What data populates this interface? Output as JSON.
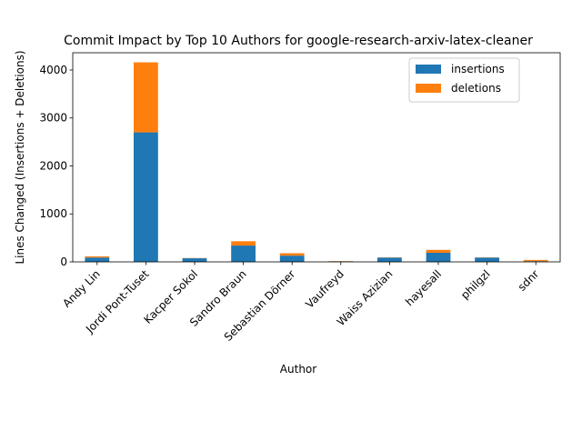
{
  "chart_data": {
    "type": "bar",
    "stacked": true,
    "title": "Commit Impact by Top 10 Authors for google-research-arxiv-latex-cleaner",
    "xlabel": "Author",
    "ylabel": "Lines Changed (Insertions + Deletions)",
    "categories": [
      "Andy Lin",
      "Jordi Pont-Tuset",
      "Kacper Sokol",
      "Sandro Braun",
      "Sebastian Dörner",
      "Vaufreyd",
      "Waiss Azizian",
      "hayesall",
      "philgzl",
      "sdnr"
    ],
    "series": [
      {
        "name": "insertions",
        "color": "#1f77b4",
        "values": [
          90,
          2700,
          75,
          340,
          130,
          10,
          90,
          190,
          90,
          15
        ]
      },
      {
        "name": "deletions",
        "color": "#ff7f0e",
        "values": [
          25,
          1460,
          5,
          90,
          50,
          5,
          5,
          60,
          5,
          25
        ]
      }
    ],
    "ylim": [
      0,
      4360
    ],
    "yticks": [
      0,
      1000,
      2000,
      3000,
      4000
    ],
    "legend_position": "top-right",
    "grid": false
  }
}
